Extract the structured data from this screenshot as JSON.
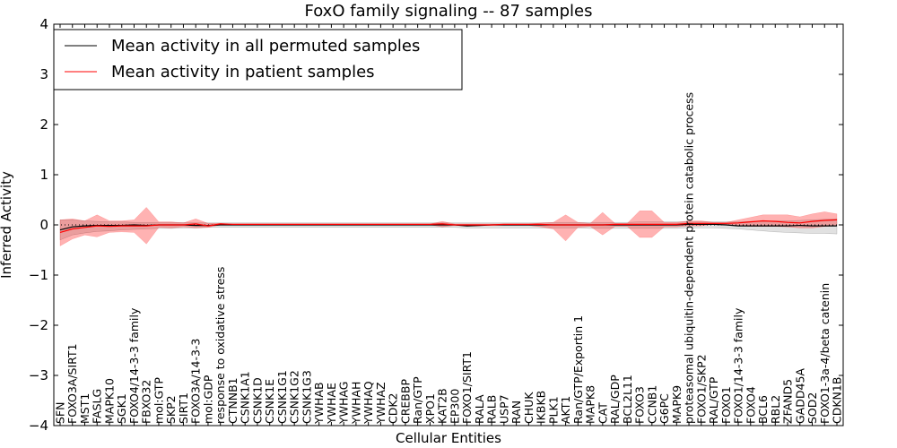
{
  "chart_data": {
    "type": "line",
    "title": "FoxO family signaling -- 87 samples",
    "xlabel": "Cellular Entities",
    "ylabel": "Inferred Activity",
    "ylim": [
      -4,
      4
    ],
    "yticks": [
      -4,
      -3,
      -2,
      -1,
      0,
      1,
      2,
      3,
      4
    ],
    "ytick_labels": [
      "−4",
      "−3",
      "−2",
      "−1",
      "0",
      "1",
      "2",
      "3",
      "4"
    ],
    "legend": {
      "placement": "top-left",
      "entries": [
        {
          "label": "Mean activity in all permuted samples",
          "color": "#000000"
        },
        {
          "label": "Mean activity in patient samples",
          "color": "#ff0000"
        }
      ]
    },
    "categories": [
      "SFN",
      "FOXO3A/SIRT1",
      "MST1",
      "FASLG",
      "MAPK10",
      "SGK1",
      "FOXO4/14-3-3 family",
      "FBXO32",
      "mol:GTP",
      "SKP2",
      "SIRT1",
      "FOXO3A/14-3-3",
      "mol:GDP",
      "response to oxidative stress",
      "CTNNB1",
      "CSNK1A1",
      "CSNK1D",
      "CSNK1E",
      "CSNK1G1",
      "CSNK1G2",
      "CSNK1G3",
      "YWHAB",
      "YWHAE",
      "YWHAG",
      "YWHAH",
      "YWHAQ",
      "YWHAZ",
      "CDK2",
      "CREBBP",
      "Ran/GTP",
      "XPO1",
      "KAT2B",
      "EP300",
      "FOXO1/SIRT1",
      "RALA",
      "RALB",
      "USP7",
      "RAN",
      "CHUK",
      "IKBKB",
      "PLK1",
      "AKT1",
      "Ran/GTP/Exportin 1",
      "MAPK8",
      "CAT",
      "RAL/GDP",
      "BCL2L11",
      "FOXO3",
      "CCNB1",
      "G6PC",
      "MAPK9",
      "proteasomal ubiquitin-dependent protein catabolic process",
      "FOXO1/SKP2",
      "RAL/GTP",
      "FOXO1",
      "FOXO1/14-3-3 family",
      "FOXO4",
      "BCL6",
      "RBL2",
      "ZFAND5",
      "GADD45A",
      "SOD2",
      "FOXO1-3a-4/beta catenin",
      "CDKN1B"
    ],
    "series": [
      {
        "name": "Mean activity in all permuted samples",
        "color": "#000000",
        "values": [
          -0.1,
          -0.04,
          -0.02,
          -0.01,
          -0.01,
          -0.01,
          0,
          -0.01,
          0,
          0,
          0,
          -0.01,
          -0.01,
          0,
          0,
          0,
          0,
          0,
          0,
          0,
          0,
          0,
          0,
          0,
          0,
          0,
          0,
          0,
          0,
          0,
          0,
          0,
          0,
          -0.02,
          -0.01,
          0,
          0,
          0,
          0,
          0,
          0,
          0,
          0,
          0,
          0,
          0,
          0,
          0,
          0,
          0,
          0,
          0.01,
          0.01,
          0.01,
          0,
          -0.02,
          -0.02,
          -0.02,
          -0.02,
          -0.02,
          -0.01,
          -0.02,
          -0.02,
          -0.02
        ],
        "band_upper": [
          0.1,
          0.1,
          0.08,
          0.07,
          0.06,
          0.06,
          0.05,
          0.05,
          0.05,
          0.05,
          0.05,
          0.04,
          0.04,
          0.04,
          0.04,
          0.04,
          0.04,
          0.04,
          0.04,
          0.04,
          0.04,
          0.04,
          0.04,
          0.04,
          0.04,
          0.04,
          0.04,
          0.04,
          0.04,
          0.04,
          0.04,
          0.04,
          0.04,
          0.04,
          0.04,
          0.04,
          0.04,
          0.04,
          0.04,
          0.04,
          0.05,
          0.05,
          0.05,
          0.05,
          0.05,
          0.05,
          0.05,
          0.06,
          0.06,
          0.06,
          0.06,
          0.06,
          0.06,
          0.06,
          0.06,
          0.06,
          0.07,
          0.07,
          0.08,
          0.08,
          0.09,
          0.1,
          0.11,
          0.12
        ],
        "band_lower": [
          -0.3,
          -0.2,
          -0.16,
          -0.13,
          -0.12,
          -0.1,
          -0.09,
          -0.08,
          -0.07,
          -0.07,
          -0.06,
          -0.06,
          -0.05,
          -0.05,
          -0.05,
          -0.05,
          -0.05,
          -0.05,
          -0.05,
          -0.05,
          -0.05,
          -0.05,
          -0.05,
          -0.05,
          -0.05,
          -0.05,
          -0.05,
          -0.05,
          -0.05,
          -0.05,
          -0.05,
          -0.05,
          -0.05,
          -0.06,
          -0.06,
          -0.06,
          -0.06,
          -0.06,
          -0.06,
          -0.06,
          -0.06,
          -0.06,
          -0.06,
          -0.07,
          -0.07,
          -0.07,
          -0.07,
          -0.07,
          -0.07,
          -0.07,
          -0.07,
          -0.06,
          -0.06,
          -0.06,
          -0.07,
          -0.08,
          -0.1,
          -0.12,
          -0.14,
          -0.15,
          -0.16,
          -0.17,
          -0.17,
          -0.18
        ]
      },
      {
        "name": "Mean activity in patient samples",
        "color": "#ff0000",
        "values": [
          -0.15,
          -0.08,
          -0.05,
          -0.02,
          -0.03,
          -0.02,
          -0.02,
          -0.02,
          0,
          0,
          0,
          0.02,
          -0.02,
          0.02,
          0.01,
          0.01,
          0.01,
          0.01,
          0.01,
          0.01,
          0.01,
          0.01,
          0.01,
          0.01,
          0.01,
          0.01,
          0.01,
          0.01,
          0.01,
          0.01,
          0.01,
          0.02,
          0,
          0,
          0,
          0,
          0.01,
          0.01,
          0.01,
          0.01,
          0,
          0,
          0,
          0,
          0,
          0.01,
          0.01,
          0.01,
          0.01,
          0.01,
          0.01,
          0.03,
          0.03,
          0.03,
          0.03,
          0.04,
          0.06,
          0.08,
          0.07,
          0.05,
          0.04,
          0.07,
          0.09,
          0.1
        ],
        "band_upper": [
          0.1,
          0.12,
          0.08,
          0.2,
          0.08,
          0.08,
          0.1,
          0.35,
          0.06,
          0.06,
          0.04,
          0.12,
          0.03,
          0.03,
          0.02,
          0.02,
          0.02,
          0.02,
          0.02,
          0.02,
          0.02,
          0.02,
          0.02,
          0.02,
          0.02,
          0.02,
          0.02,
          0.02,
          0.02,
          0.02,
          0.02,
          0.07,
          0.02,
          0.02,
          0.02,
          0.02,
          0.02,
          0.02,
          0.02,
          0.04,
          0.05,
          0.2,
          0.05,
          0.03,
          0.25,
          0.03,
          0.03,
          0.28,
          0.28,
          0.05,
          0.05,
          0.08,
          0.08,
          0.05,
          0.05,
          0.1,
          0.15,
          0.2,
          0.2,
          0.2,
          0.16,
          0.22,
          0.26,
          0.22
        ],
        "band_lower": [
          -0.42,
          -0.28,
          -0.2,
          -0.24,
          -0.15,
          -0.14,
          -0.15,
          -0.38,
          -0.05,
          -0.06,
          -0.04,
          -0.06,
          -0.05,
          0,
          0,
          0,
          0,
          0,
          0,
          0,
          0,
          0,
          0,
          0,
          0,
          0,
          0,
          0,
          0,
          0,
          0,
          -0.04,
          -0.01,
          -0.01,
          -0.01,
          -0.01,
          -0.01,
          -0.01,
          -0.01,
          -0.04,
          -0.08,
          -0.32,
          -0.05,
          -0.03,
          -0.2,
          -0.03,
          -0.03,
          -0.25,
          -0.25,
          -0.04,
          -0.04,
          -0.02,
          -0.02,
          0.01,
          0.01,
          -0.02,
          -0.03,
          -0.03,
          -0.03,
          -0.04,
          -0.06,
          -0.06,
          -0.03,
          -0.02
        ]
      }
    ]
  }
}
